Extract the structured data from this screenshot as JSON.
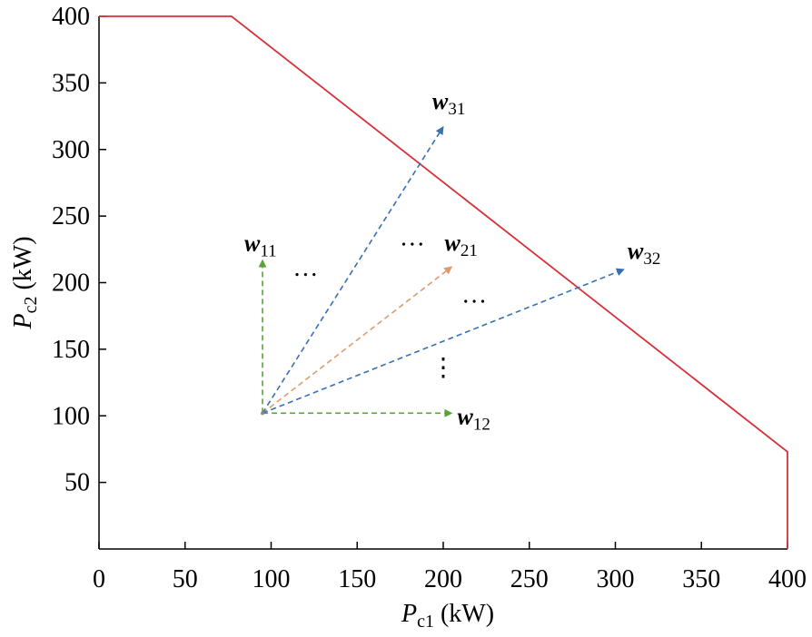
{
  "chart_data": {
    "type": "line",
    "xlabel": {
      "var": "P",
      "sub": "c1",
      "unit": " (kW)"
    },
    "ylabel": {
      "var": "P",
      "sub": "c2",
      "unit": " (kW)"
    },
    "xlim": [
      0,
      400
    ],
    "ylim": [
      0,
      400
    ],
    "x_ticks": [
      0,
      50,
      100,
      150,
      200,
      250,
      300,
      350,
      400
    ],
    "y_ticks": [
      50,
      100,
      150,
      200,
      250,
      300,
      350,
      400
    ],
    "grid": false,
    "series": [
      {
        "color": "#d6303a",
        "points": [
          [
            0,
            400
          ],
          [
            77,
            400
          ],
          [
            400,
            73
          ],
          [
            400,
            0
          ]
        ]
      }
    ],
    "vectors": [
      {
        "label": "w",
        "sub": "11",
        "color": "#5aa336",
        "from": [
          95,
          102
        ],
        "to": [
          95,
          217
        ]
      },
      {
        "label": "w",
        "sub": "12",
        "color": "#5aa336",
        "from": [
          95,
          102
        ],
        "to": [
          205,
          102
        ]
      },
      {
        "label": "w",
        "sub": "21",
        "color": "#e09a70",
        "from": [
          95,
          102
        ],
        "to": [
          205,
          212
        ]
      },
      {
        "label": "w",
        "sub": "31",
        "color": "#3670b5",
        "from": [
          95,
          102
        ],
        "to": [
          200,
          317
        ]
      },
      {
        "label": "w",
        "sub": "32",
        "color": "#3670b5",
        "from": [
          95,
          102
        ],
        "to": [
          305,
          210
        ]
      }
    ],
    "ellipses": [
      {
        "text": "…",
        "at": [
          120,
          205
        ]
      },
      {
        "text": "…",
        "at": [
          182,
          228
        ]
      },
      {
        "text": "…",
        "at": [
          218,
          185
        ]
      },
      {
        "text": "⋮",
        "at": [
          200,
          130
        ]
      }
    ]
  }
}
